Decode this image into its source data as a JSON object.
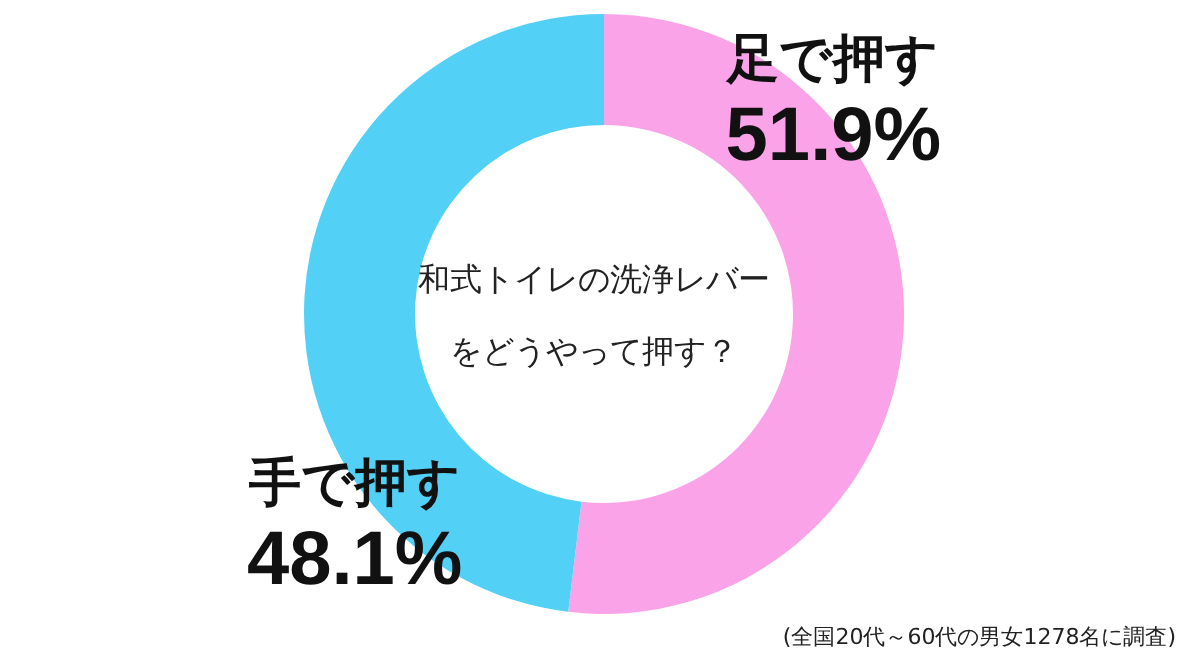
{
  "chart_data": {
    "type": "donut",
    "title": "和式トイレの洗浄レバーをどうやって押す？",
    "categories": [
      "足で押す",
      "手で押す"
    ],
    "values": [
      51.9,
      48.1
    ],
    "colors": [
      "#fba3e8",
      "#52d0f6"
    ],
    "value_labels": [
      "51.9%",
      "48.1%"
    ],
    "annotations": [
      "(全国20代～60代の男女1278名に調査)"
    ]
  }
}
